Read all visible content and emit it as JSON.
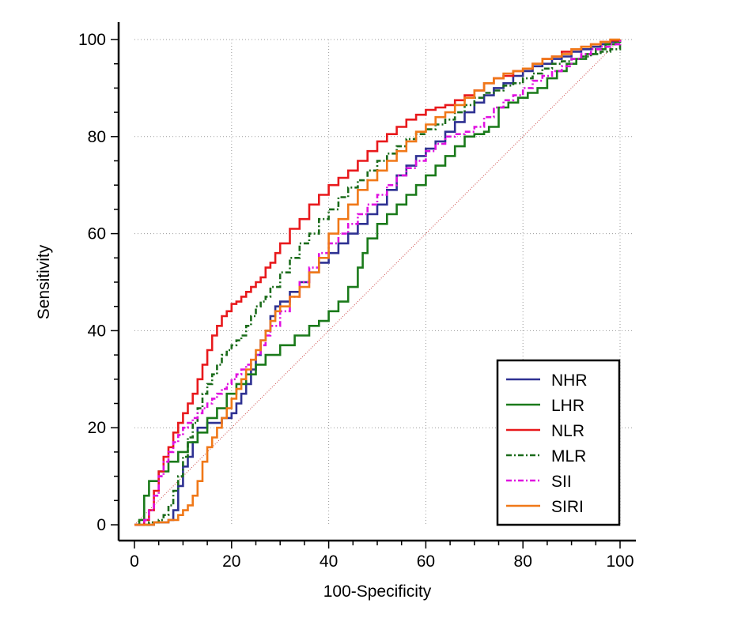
{
  "chart_data": {
    "type": "line",
    "title": "",
    "xlabel": "100-Specificity",
    "ylabel": "Sensitivity",
    "xlim": [
      0,
      100
    ],
    "ylim": [
      0,
      100
    ],
    "xticks": [
      "0",
      "20",
      "40",
      "60",
      "80",
      "100"
    ],
    "yticks": [
      "0",
      "20",
      "40",
      "60",
      "80",
      "100"
    ],
    "grid": true,
    "legend_position": "bottom-right",
    "reference_line": {
      "x": [
        0,
        100
      ],
      "y": [
        0,
        100
      ],
      "color": "#cc4444",
      "style": "dotted"
    },
    "series": [
      {
        "name": "NHR",
        "color": "#2e3192",
        "style": "solid",
        "x": [
          0,
          4,
          7,
          8,
          9,
          10,
          11,
          12,
          13,
          15,
          18,
          20,
          21,
          22,
          23,
          24,
          25,
          26,
          27,
          28,
          29,
          30,
          32,
          34,
          36,
          38,
          40,
          42,
          44,
          46,
          48,
          50,
          52,
          54,
          56,
          58,
          60,
          62,
          64,
          66,
          68,
          70,
          72,
          74,
          76,
          78,
          80,
          82,
          84,
          86,
          88,
          90,
          92,
          94,
          96,
          98,
          100
        ],
        "y": [
          0,
          0.5,
          1,
          3,
          8,
          12,
          14,
          17,
          20,
          21,
          22,
          23,
          25,
          27,
          29,
          32,
          35,
          38,
          40,
          43,
          45,
          46,
          48,
          50,
          52,
          54,
          56,
          58,
          60,
          62,
          64,
          66,
          69,
          72,
          74,
          76,
          77.5,
          79,
          81,
          83,
          85,
          87,
          88.5,
          90,
          91,
          92.5,
          93.5,
          94.5,
          95,
          96,
          96.5,
          97.5,
          98,
          98.5,
          99,
          99.5,
          100
        ]
      },
      {
        "name": "LHR",
        "color": "#1a7a1a",
        "style": "solid",
        "x": [
          0,
          1,
          2,
          3,
          5,
          7,
          9,
          11,
          13,
          15,
          17,
          19,
          21,
          23,
          25,
          27,
          30,
          33,
          36,
          38,
          40,
          42,
          44,
          46,
          47,
          48,
          50,
          52,
          54,
          56,
          58,
          60,
          62,
          64,
          66,
          68,
          70,
          72,
          73,
          75,
          77,
          79,
          81,
          83,
          85,
          87,
          89,
          91,
          93,
          95,
          97,
          99,
          100
        ],
        "y": [
          0,
          1,
          6,
          9,
          11,
          13,
          15,
          17,
          19,
          22,
          24,
          27,
          29,
          31,
          33,
          35,
          37,
          39,
          41,
          42,
          44,
          46,
          49,
          53,
          56,
          59,
          62,
          64,
          66,
          68,
          70,
          72,
          74,
          76,
          78,
          80,
          80.5,
          81,
          82,
          86,
          87,
          88,
          89,
          90,
          92,
          93.5,
          95,
          96,
          97,
          98,
          99,
          99.5,
          100
        ]
      },
      {
        "name": "NLR",
        "color": "#e8191c",
        "style": "solid",
        "x": [
          0,
          2,
          3,
          4,
          5,
          6,
          7,
          8,
          9,
          10,
          11,
          12,
          13,
          14,
          15,
          16,
          17,
          18,
          19,
          20,
          21,
          22,
          23,
          24,
          25,
          26,
          27,
          28,
          29,
          30,
          32,
          34,
          36,
          38,
          40,
          42,
          44,
          46,
          48,
          50,
          52,
          54,
          56,
          58,
          60,
          62,
          64,
          66,
          68,
          70,
          72,
          74,
          76,
          78,
          80,
          82,
          84,
          86,
          88,
          90,
          92,
          94,
          96,
          98,
          100
        ],
        "y": [
          0,
          1,
          3,
          7,
          11,
          14,
          16,
          19,
          21,
          23,
          25,
          27,
          30,
          33,
          36,
          39,
          41,
          43,
          44,
          45.5,
          46,
          47,
          48,
          49,
          50,
          51,
          53,
          54,
          56,
          58,
          61,
          63,
          66,
          68,
          70,
          71.5,
          73,
          75,
          77,
          79,
          80.5,
          82,
          83.5,
          84.5,
          85.5,
          86,
          86.5,
          87.5,
          88.5,
          89.5,
          91,
          92,
          92.5,
          93.5,
          94,
          95,
          96,
          96.5,
          97.5,
          98,
          98.5,
          99,
          99.5,
          99.8,
          100
        ]
      },
      {
        "name": "MLR",
        "color": "#1a6b1a",
        "style": "dashdot",
        "x": [
          0,
          3,
          5,
          6,
          7,
          8,
          9,
          10,
          11,
          12,
          13,
          14,
          15,
          16,
          17,
          18,
          19,
          20,
          21,
          22,
          23,
          24,
          25,
          26,
          27,
          28,
          30,
          32,
          34,
          36,
          38,
          40,
          42,
          44,
          46,
          48,
          50,
          52,
          54,
          56,
          58,
          60,
          62,
          64,
          66,
          68,
          70,
          72,
          74,
          76,
          78,
          80,
          82,
          84,
          86,
          88,
          90,
          92,
          94,
          96,
          98,
          100
        ],
        "y": [
          0,
          0.5,
          1,
          2,
          4,
          7,
          10,
          14,
          18,
          21,
          24,
          27,
          29,
          31,
          33,
          35,
          36,
          37,
          38,
          39,
          41,
          43,
          45,
          46,
          47,
          49,
          52,
          55,
          58,
          60,
          63,
          65,
          67.5,
          69.5,
          71,
          73,
          75,
          76.5,
          78,
          79.5,
          80.5,
          81.5,
          82.5,
          83.5,
          85,
          86.5,
          88,
          89,
          89.5,
          90.5,
          91,
          92,
          93,
          94,
          95,
          95.5,
          96,
          96.5,
          97,
          97.5,
          98,
          100
        ]
      },
      {
        "name": "SII",
        "color": "#e010e0",
        "style": "dashdot",
        "x": [
          0,
          2,
          3,
          4,
          5,
          6,
          7,
          8,
          9,
          10,
          11,
          12,
          13,
          14,
          15,
          16,
          17,
          18,
          19,
          20,
          21,
          22,
          23,
          24,
          25,
          26,
          27,
          28,
          30,
          32,
          34,
          36,
          38,
          40,
          42,
          44,
          46,
          48,
          50,
          52,
          54,
          56,
          58,
          60,
          62,
          64,
          66,
          68,
          70,
          72,
          74,
          76,
          78,
          80,
          82,
          84,
          86,
          88,
          90,
          92,
          94,
          96,
          98,
          100
        ],
        "y": [
          0,
          1,
          3,
          6,
          10,
          13,
          15,
          17,
          18.5,
          20,
          21,
          22,
          23,
          24,
          25,
          26,
          27,
          28,
          29,
          30,
          31,
          32,
          33,
          34,
          35,
          37,
          39,
          41,
          44,
          47,
          50,
          53,
          56,
          58,
          60,
          62,
          64,
          66,
          68,
          70,
          72,
          73.5,
          75,
          77,
          78.5,
          80,
          80.5,
          81,
          82,
          84,
          86,
          87.5,
          88.5,
          90,
          91.5,
          92.5,
          93.5,
          94.5,
          96,
          97,
          98,
          98.5,
          99,
          100
        ]
      },
      {
        "name": "SIRI",
        "color": "#f07818",
        "style": "solid",
        "x": [
          0,
          4,
          7,
          9,
          10,
          11,
          12,
          13,
          14,
          15,
          16,
          17,
          18,
          19,
          20,
          21,
          22,
          23,
          24,
          25,
          26,
          27,
          28,
          29,
          30,
          32,
          34,
          36,
          38,
          40,
          42,
          44,
          46,
          48,
          50,
          52,
          54,
          56,
          58,
          60,
          62,
          64,
          66,
          68,
          70,
          72,
          74,
          76,
          78,
          80,
          82,
          84,
          86,
          88,
          90,
          92,
          94,
          96,
          98,
          100
        ],
        "y": [
          0,
          0.5,
          1,
          2,
          3,
          4,
          6,
          9,
          13,
          16,
          18,
          20,
          22,
          24,
          26,
          28,
          30,
          32,
          34,
          36,
          38,
          40,
          42,
          44,
          45,
          47,
          49,
          52,
          55,
          60,
          63,
          66,
          69,
          71,
          73,
          75,
          77,
          79,
          81,
          82.5,
          84,
          85,
          86.5,
          88,
          89.5,
          91,
          92,
          93,
          93.5,
          94,
          95,
          96,
          96.5,
          97,
          98,
          98.5,
          99,
          99.5,
          100,
          100
        ]
      }
    ]
  }
}
